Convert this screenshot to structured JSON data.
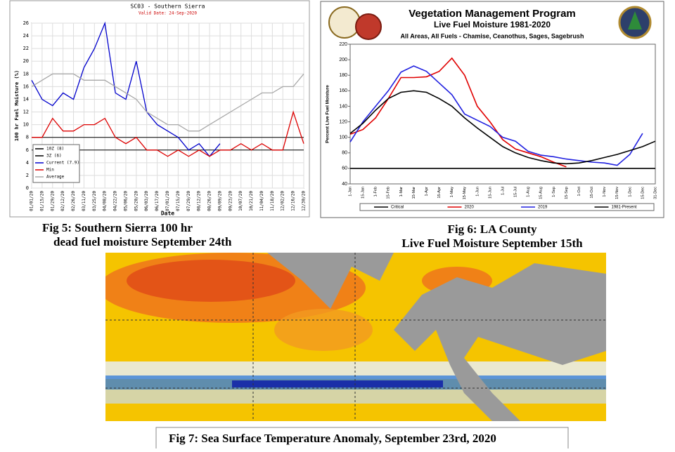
{
  "chart_data": [
    {
      "type": "line",
      "title": "SC03 - Southern Sierra",
      "subtitle": "Valid Date: 24-Sep-2020",
      "xlabel": "Date",
      "ylabel": "100 hr Fuel Moisture (%)",
      "categories": [
        "01/01/20",
        "01/15/20",
        "01/29/20",
        "02/12/20",
        "02/26/20",
        "03/11/20",
        "03/25/20",
        "04/08/20",
        "04/22/20",
        "05/06/20",
        "05/20/20",
        "06/03/20",
        "06/17/20",
        "07/01/20",
        "07/15/20",
        "07/29/20",
        "08/12/20",
        "08/26/20",
        "09/09/20",
        "09/23/20",
        "10/07/20",
        "10/21/20",
        "11/04/20",
        "11/18/20",
        "12/02/20",
        "12/16/20",
        "12/30/20"
      ],
      "ylim": [
        0,
        26
      ],
      "yticks": [
        0,
        2,
        4,
        6,
        8,
        10,
        12,
        14,
        16,
        18,
        20,
        22,
        24,
        26
      ],
      "grid": true,
      "legend": "lower left",
      "thresholds": [
        {
          "name": "10Z (8)",
          "value": 8,
          "color": "#000000"
        },
        {
          "name": "3Z (6)",
          "value": 6,
          "color": "#000000"
        }
      ],
      "series": [
        {
          "name": "Current (7.9)",
          "color": "#0000cc",
          "values": [
            17,
            14,
            13,
            15,
            14,
            19,
            22,
            26,
            15,
            14,
            20,
            12,
            10,
            9,
            8,
            6,
            7,
            5,
            7,
            null,
            null,
            null,
            null,
            null,
            null,
            null,
            null
          ]
        },
        {
          "name": "Min",
          "color": "#dd0000",
          "values": [
            8,
            8,
            11,
            9,
            9,
            10,
            10,
            11,
            8,
            7,
            8,
            6,
            6,
            5,
            6,
            5,
            6,
            5,
            6,
            6,
            7,
            6,
            7,
            6,
            6,
            12,
            7
          ]
        },
        {
          "name": "Average",
          "color": "#a8a8a8",
          "values": [
            16,
            17,
            18,
            18,
            18,
            17,
            17,
            17,
            16,
            15,
            14,
            12,
            11,
            10,
            10,
            9,
            9,
            10,
            11,
            12,
            13,
            14,
            15,
            15,
            16,
            16,
            18
          ]
        }
      ]
    },
    {
      "type": "line",
      "title": "Vegetation Management Program",
      "subtitle": "Live Fuel Moisture 1981-2020",
      "note": "All Areas, All Fuels - Chamise, Ceanothus, Sages, Sagebrush",
      "ylabel": "Percent Live Fuel Moisture",
      "categories": [
        "1-Jan",
        "15-Jan",
        "1-Feb",
        "15-Feb",
        "1-Mar",
        "15-Mar",
        "1-Apr",
        "15-Apr",
        "1-May",
        "15-May",
        "1-Jun",
        "15-Jun",
        "1-Jul",
        "15-Jul",
        "1-Aug",
        "15-Aug",
        "1-Sep",
        "15-Sep",
        "1-Oct",
        "15-Oct",
        "1-Nov",
        "15-Nov",
        "1-Dec",
        "15-Dec",
        "31-Dec"
      ],
      "ylim": [
        40,
        220
      ],
      "yticks": [
        40,
        60,
        80,
        100,
        120,
        140,
        160,
        180,
        200,
        220
      ],
      "grid": false,
      "legend": "bottom",
      "series": [
        {
          "name": "Critical",
          "color": "#000000",
          "values": [
            60,
            60,
            60,
            60,
            60,
            60,
            60,
            60,
            60,
            60,
            60,
            60,
            60,
            60,
            60,
            60,
            60,
            60,
            60,
            60,
            60,
            60,
            60,
            60,
            60
          ]
        },
        {
          "name": "2020",
          "color": "#e00000",
          "values": [
            104,
            110,
            125,
            150,
            177,
            177,
            178,
            185,
            202,
            180,
            140,
            120,
            97,
            85,
            80,
            75,
            68,
            62,
            null,
            null,
            null,
            null,
            null,
            null,
            null
          ]
        },
        {
          "name": "2019",
          "color": "#2020e0",
          "values": [
            94,
            120,
            140,
            160,
            184,
            192,
            185,
            170,
            155,
            130,
            122,
            114,
            100,
            95,
            82,
            77,
            75,
            72,
            70,
            68,
            67,
            64,
            78,
            105,
            null
          ]
        },
        {
          "name": "1981-Present",
          "color": "#000000",
          "values": [
            105,
            118,
            135,
            150,
            158,
            160,
            158,
            150,
            140,
            125,
            112,
            100,
            88,
            80,
            74,
            70,
            67,
            66,
            67,
            70,
            74,
            78,
            83,
            88,
            95
          ]
        }
      ]
    }
  ],
  "captions": [
    "Fig 5: Southern Sierra 100 hr dead fuel moisture September 24th",
    "Fig 6: LA County Live Fuel Moisture September 15th",
    "Fig 7: Sea Surface Temperature Anomaly, September 23rd, 2020"
  ]
}
